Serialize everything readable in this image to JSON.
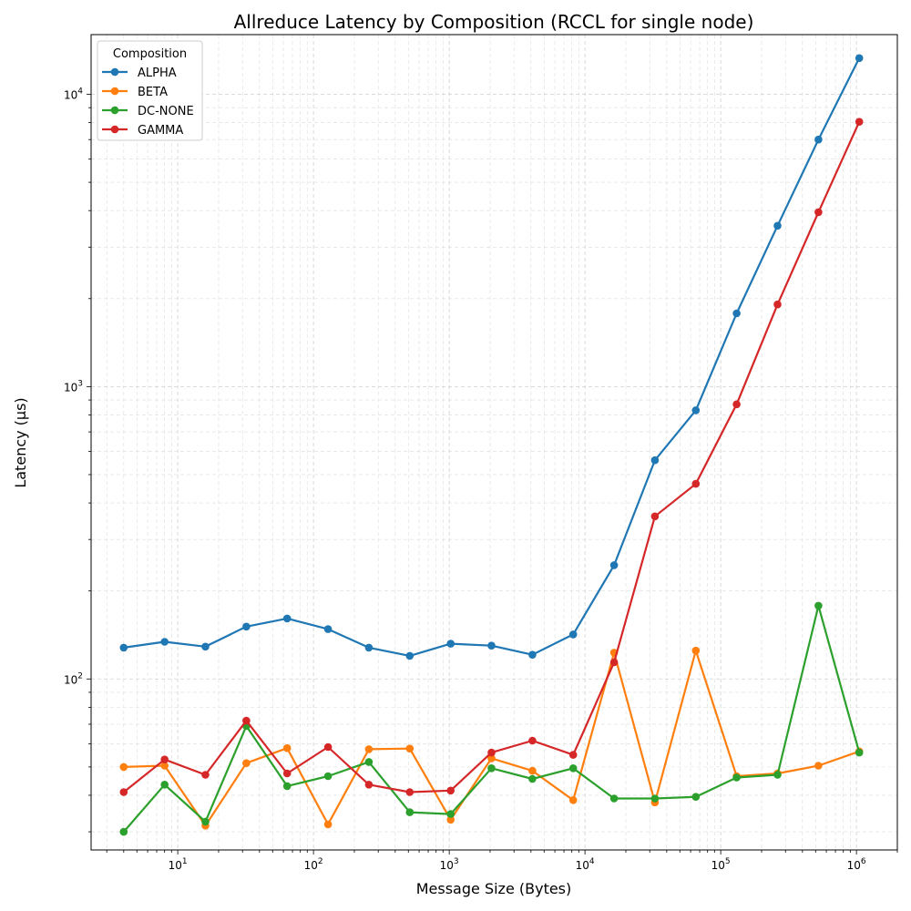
{
  "chart_data": {
    "type": "line",
    "title": "Allreduce Latency by Composition (RCCL for single node)",
    "xlabel": "Message Size (Bytes)",
    "ylabel": "Latency (µs)",
    "xscale": "log",
    "yscale": "log",
    "xlim": [
      2.3,
      2000000
    ],
    "ylim": [
      26,
      16000
    ],
    "grid": true,
    "legend_title": "Composition",
    "legend_placement": "top-left",
    "x": [
      4,
      8,
      16,
      32,
      64,
      128,
      256,
      512,
      1024,
      2048,
      4096,
      8192,
      16384,
      32768,
      65536,
      131072,
      262144,
      524288,
      1048576
    ],
    "xticks": [
      {
        "value": 10,
        "base": "10",
        "exp": "1"
      },
      {
        "value": 100,
        "base": "10",
        "exp": "2"
      },
      {
        "value": 1000,
        "base": "10",
        "exp": "3"
      },
      {
        "value": 10000,
        "base": "10",
        "exp": "4"
      },
      {
        "value": 100000,
        "base": "10",
        "exp": "5"
      },
      {
        "value": 1000000,
        "base": "10",
        "exp": "6"
      }
    ],
    "yticks": [
      {
        "value": 100,
        "base": "10",
        "exp": "2"
      },
      {
        "value": 1000,
        "base": "10",
        "exp": "3"
      },
      {
        "value": 10000,
        "base": "10",
        "exp": "4"
      }
    ],
    "series": [
      {
        "name": "ALPHA",
        "color": "#1f77b4",
        "values": [
          128,
          134,
          129,
          151,
          161,
          148,
          128,
          120,
          132,
          130,
          121,
          142,
          245,
          560,
          830,
          1780,
          3550,
          7000,
          13300
        ]
      },
      {
        "name": "BETA",
        "color": "#ff7f0e",
        "values": [
          50,
          50.5,
          31.5,
          51.5,
          58,
          31.8,
          57.5,
          57.8,
          33,
          53.5,
          48.5,
          38.5,
          123,
          37.8,
          125,
          46.5,
          47.5,
          50.5,
          56.5
        ]
      },
      {
        "name": "DC-NONE",
        "color": "#2ca02c",
        "values": [
          30,
          43.5,
          32.5,
          69,
          43,
          46.5,
          52,
          35,
          34.5,
          49.5,
          45.5,
          49.5,
          39,
          39,
          39.5,
          46,
          47,
          178,
          56
        ]
      },
      {
        "name": "GAMMA",
        "color": "#d62728",
        "values": [
          41,
          53,
          47,
          72,
          47.5,
          58.5,
          43.5,
          41,
          41.5,
          56,
          61.5,
          55,
          114,
          360,
          465,
          870,
          1910,
          3950,
          8050
        ]
      }
    ]
  }
}
